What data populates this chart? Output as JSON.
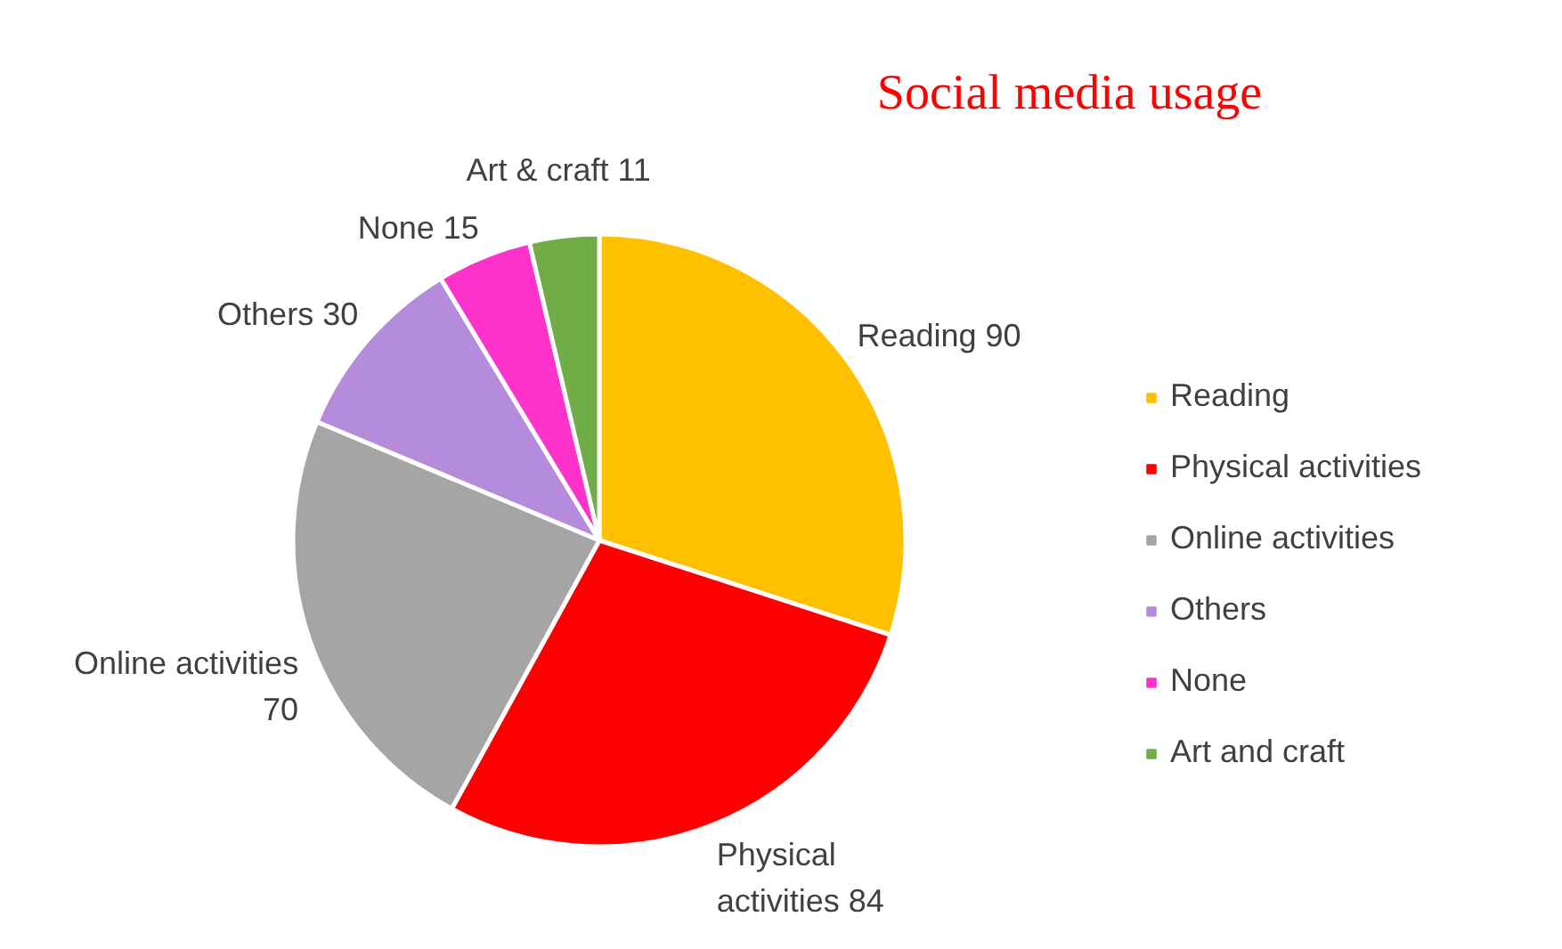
{
  "chart_data": {
    "type": "pie",
    "title": "Social media usage",
    "categories": [
      "Reading",
      "Physical activities",
      "Online activities",
      "Others",
      "None",
      "Art and craft"
    ],
    "values": [
      90,
      84,
      70,
      30,
      15,
      11
    ],
    "colors": [
      "#ffc000",
      "#ff0000",
      "#a5a5a5",
      "#b58bdc",
      "#ff33cc",
      "#70ad47"
    ],
    "value_labels": [
      "Reading 90",
      "Physical\nactivities 84",
      "Online activities\n70",
      "Others 30",
      "None 15",
      "Art & craft 11"
    ],
    "legend": "right"
  }
}
